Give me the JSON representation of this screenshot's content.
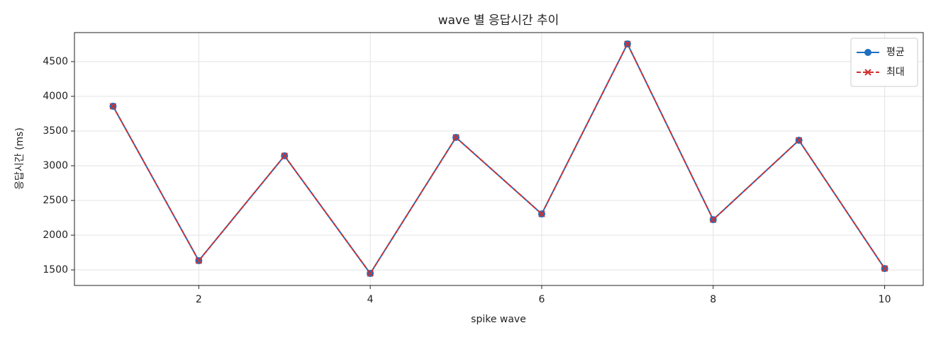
{
  "chart_data": {
    "type": "line",
    "title": "wave 별 응답시간 추이",
    "xlabel": "spike wave",
    "ylabel": "응답시간 (ms)",
    "x": [
      1,
      2,
      3,
      4,
      5,
      6,
      7,
      8,
      9,
      10
    ],
    "series": [
      {
        "name": "평균",
        "color": "#1f6fc0",
        "linestyle": "solid",
        "marker": "o",
        "values": [
          3857,
          1633,
          3143,
          1449,
          3408,
          2306,
          4755,
          2224,
          3367,
          1520
        ]
      },
      {
        "name": "최대",
        "color": "#d03030",
        "linestyle": "dashed",
        "marker": "x",
        "values": [
          3857,
          1633,
          3143,
          1449,
          3408,
          2306,
          4755,
          2224,
          3367,
          1520
        ]
      }
    ],
    "xlim": [
      0.55,
      10.45
    ],
    "xticks": [
      2,
      4,
      6,
      8,
      10
    ],
    "ylim": [
      1276,
      4918
    ],
    "yticks": [
      1500,
      2000,
      2500,
      3000,
      3500,
      4000,
      4500
    ],
    "grid": true,
    "legend": "upper right"
  }
}
